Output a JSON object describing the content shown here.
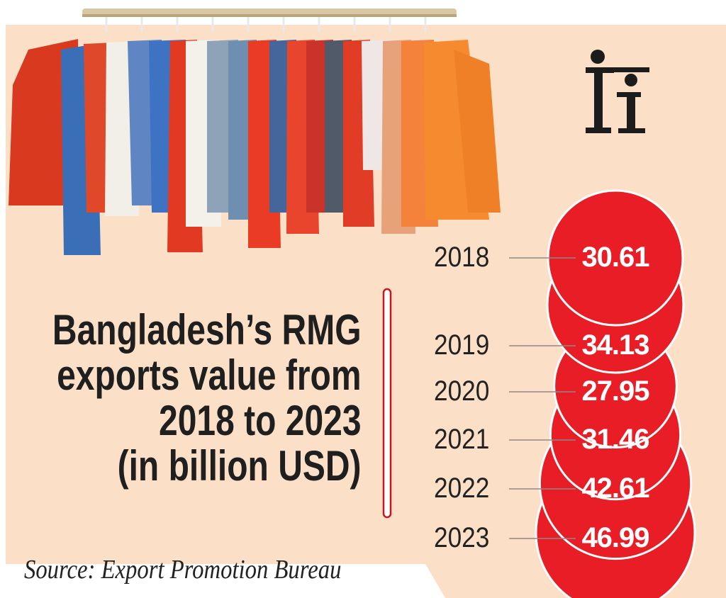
{
  "title": [
    "Bangladesh’s RMG",
    "exports value from",
    "2018 to 2023",
    "(in billion USD)"
  ],
  "source": "Source: Export Promotion Bureau",
  "logo_icon": "ti-logo-icon",
  "illustration_icon": "clothes-rack-icon",
  "colors": {
    "background": "#fbe0c7",
    "bubble": "#e81d25",
    "bubble_edge": "#ffffff",
    "title": "#1f1f1f",
    "divider": "#c7161d"
  },
  "chart_data": {
    "type": "bubble",
    "categories": [
      "2018",
      "2019",
      "2020",
      "2021",
      "2022",
      "2023"
    ],
    "values": [
      30.61,
      34.13,
      27.95,
      31.46,
      42.61,
      46.99
    ],
    "value_labels": [
      "30.61",
      "34.13",
      "27.95",
      "31.46",
      "42.61",
      "46.99"
    ],
    "legend": "none",
    "grid": false
  }
}
